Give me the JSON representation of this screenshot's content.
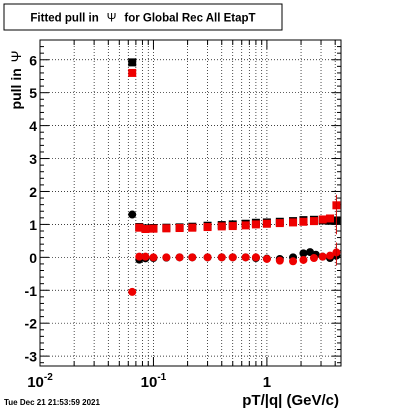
{
  "title_parts": [
    "Fitted pull in",
    "Ψ",
    "for Global Rec All EtapT"
  ],
  "footer": "Tue Dec 21 21:53:59 2021",
  "chart_data": {
    "type": "scatter",
    "xlabel": "pT/|q| (GeV/c)",
    "ylabel_parts": [
      "pull in",
      "Ψ"
    ],
    "x_scale": "log",
    "xlim": [
      0.01,
      4.5
    ],
    "ylim": [
      -3.3,
      6.6
    ],
    "y_ticks": [
      -3,
      -2,
      -1,
      0,
      1,
      2,
      3,
      4,
      5,
      6
    ],
    "x_major_ticks": [
      {
        "value": 0.01,
        "base": "10",
        "exp": "-2"
      },
      {
        "value": 0.1,
        "base": "10",
        "exp": "-1"
      },
      {
        "value": 1,
        "base": "1",
        "exp": ""
      }
    ],
    "grid": true,
    "series": [
      {
        "color": "#000000",
        "marker": "square",
        "points": [
          [
            0.065,
            5.92
          ]
        ]
      },
      {
        "color": "#ee0000",
        "marker": "square",
        "points": [
          [
            0.065,
            5.6
          ]
        ]
      },
      {
        "color": "#000000",
        "marker": "circle",
        "points": [
          [
            0.065,
            1.3
          ]
        ]
      },
      {
        "color": "#ee0000",
        "marker": "circle",
        "points": [
          [
            0.065,
            -1.05
          ]
        ]
      },
      {
        "color": "#000000",
        "marker": "square",
        "points": [
          [
            0.075,
            0.92
          ],
          [
            0.085,
            0.88
          ],
          [
            0.1,
            0.89
          ],
          [
            0.13,
            0.9
          ],
          [
            0.17,
            0.91
          ],
          [
            0.22,
            0.93
          ],
          [
            0.3,
            0.96
          ],
          [
            0.4,
            0.98
          ],
          [
            0.5,
            1.0
          ],
          [
            0.65,
            1.02
          ],
          [
            0.8,
            1.05
          ],
          [
            1.0,
            1.06
          ],
          [
            1.3,
            1.08
          ],
          [
            1.7,
            1.1
          ],
          [
            2.1,
            1.13
          ],
          [
            2.6,
            1.14
          ],
          [
            3.1,
            1.12
          ],
          [
            3.6,
            1.11
          ],
          [
            4.1,
            1.12
          ]
        ]
      },
      {
        "color": "#ee0000",
        "marker": "square",
        "points": [
          [
            0.075,
            0.9
          ],
          [
            0.085,
            0.86
          ],
          [
            0.1,
            0.87
          ],
          [
            0.13,
            0.88
          ],
          [
            0.17,
            0.89
          ],
          [
            0.22,
            0.9
          ],
          [
            0.3,
            0.92
          ],
          [
            0.4,
            0.94
          ],
          [
            0.5,
            0.95
          ],
          [
            0.65,
            0.97
          ],
          [
            0.8,
            1.0
          ],
          [
            1.0,
            1.02
          ],
          [
            1.3,
            1.04
          ],
          [
            1.7,
            1.06
          ],
          [
            2.1,
            1.08
          ],
          [
            2.6,
            1.1
          ],
          [
            3.1,
            1.15
          ],
          [
            3.6,
            1.18
          ],
          [
            4.1,
            1.58
          ]
        ]
      },
      {
        "color": "#000000",
        "marker": "circle",
        "points": [
          [
            0.075,
            -0.07
          ],
          [
            0.085,
            -0.03
          ],
          [
            0.1,
            -0.02
          ],
          [
            0.13,
            -0.01
          ],
          [
            0.17,
            0.0
          ],
          [
            0.22,
            0.0
          ],
          [
            0.3,
            0.0
          ],
          [
            0.4,
            0.0
          ],
          [
            0.5,
            0.0
          ],
          [
            0.65,
            0.0
          ],
          [
            0.8,
            -0.02
          ],
          [
            1.0,
            -0.04
          ],
          [
            1.3,
            -0.05
          ],
          [
            1.7,
            0.0
          ],
          [
            2.1,
            0.12
          ],
          [
            2.4,
            0.16
          ],
          [
            2.7,
            0.08
          ],
          [
            3.1,
            0.02
          ],
          [
            3.6,
            -0.02
          ],
          [
            4.1,
            0.05
          ]
        ]
      },
      {
        "color": "#ee0000",
        "marker": "circle",
        "points": [
          [
            0.075,
            0.02
          ],
          [
            0.085,
            0.02
          ],
          [
            0.1,
            0.0
          ],
          [
            0.13,
            0.0
          ],
          [
            0.17,
            0.0
          ],
          [
            0.22,
            0.0
          ],
          [
            0.3,
            0.0
          ],
          [
            0.4,
            0.0
          ],
          [
            0.5,
            0.0
          ],
          [
            0.65,
            0.0
          ],
          [
            0.8,
            0.0
          ],
          [
            1.0,
            -0.05
          ],
          [
            1.3,
            -0.1
          ],
          [
            1.7,
            -0.12
          ],
          [
            2.1,
            -0.08
          ],
          [
            2.6,
            -0.02
          ],
          [
            3.1,
            0.02
          ],
          [
            3.6,
            0.05
          ],
          [
            4.1,
            0.15
          ]
        ]
      }
    ]
  }
}
